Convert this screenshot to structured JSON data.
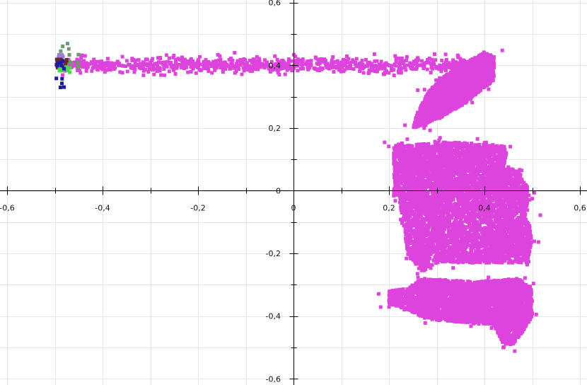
{
  "chart_data": {
    "type": "scatter",
    "title": "",
    "xlabel": "",
    "ylabel": "",
    "xlim": [
      -0.615,
      0.615
    ],
    "ylim": [
      -0.61,
      0.61
    ],
    "grid": true,
    "x_ticks": [
      -0.6,
      -0.4,
      -0.2,
      0,
      0.2,
      0.4,
      0.6
    ],
    "x_tick_labels": [
      "-0,6",
      "-0,4",
      "-0,2",
      "0",
      "0,2",
      "0,4",
      "0,6"
    ],
    "y_ticks": [
      0.6,
      0.4,
      0.2,
      0,
      -0.2,
      -0.4,
      -0.6
    ],
    "y_tick_labels": [
      "0,6",
      "0,4",
      "0,2",
      "0",
      "-0,2",
      "-0,4",
      "-0,6"
    ],
    "series": [
      {
        "color": "#dd44dd",
        "regions": [
          {
            "shape": "band",
            "x": [
              -0.49,
              0.42
            ],
            "y_center": 0.4,
            "y_spread": 0.012,
            "count": 950
          },
          {
            "shape": "polygon",
            "count": 3000,
            "points": [
              [
                0.25,
                0.2
              ],
              [
                0.27,
                0.21
              ],
              [
                0.31,
                0.235
              ],
              [
                0.36,
                0.28
              ],
              [
                0.4,
                0.33
              ],
              [
                0.42,
                0.35
              ],
              [
                0.42,
                0.43
              ],
              [
                0.4,
                0.44
              ],
              [
                0.35,
                0.4
              ],
              [
                0.31,
                0.36
              ],
              [
                0.28,
                0.31
              ],
              [
                0.26,
                0.25
              ]
            ]
          },
          {
            "shape": "polygon",
            "count": 2500,
            "points": [
              [
                0.21,
                0.15
              ],
              [
                0.24,
                0.145
              ],
              [
                0.32,
                0.155
              ],
              [
                0.4,
                0.15
              ],
              [
                0.45,
                0.14
              ],
              [
                0.44,
                0.07
              ],
              [
                0.47,
                0.07
              ],
              [
                0.49,
                0.01
              ],
              [
                0.49,
                -0.02
              ],
              [
                0.21,
                -0.02
              ]
            ]
          },
          {
            "shape": "polygon",
            "count": 2800,
            "points": [
              [
                0.22,
                -0.02
              ],
              [
                0.49,
                -0.02
              ],
              [
                0.49,
                -0.07
              ],
              [
                0.5,
                -0.16
              ],
              [
                0.49,
                -0.23
              ],
              [
                0.3,
                -0.23
              ],
              [
                0.27,
                -0.26
              ],
              [
                0.24,
                -0.21
              ],
              [
                0.23,
                -0.1
              ]
            ]
          },
          {
            "shape": "polygon",
            "count": 3300,
            "points": [
              [
                0.24,
                -0.31
              ],
              [
                0.27,
                -0.28
              ],
              [
                0.38,
                -0.29
              ],
              [
                0.47,
                -0.28
              ],
              [
                0.5,
                -0.31
              ],
              [
                0.5,
                -0.4
              ],
              [
                0.48,
                -0.45
              ],
              [
                0.46,
                -0.49
              ],
              [
                0.44,
                -0.49
              ],
              [
                0.42,
                -0.43
              ],
              [
                0.36,
                -0.42
              ],
              [
                0.28,
                -0.41
              ],
              [
                0.24,
                -0.38
              ],
              [
                0.2,
                -0.36
              ],
              [
                0.2,
                -0.32
              ]
            ]
          }
        ]
      },
      {
        "color": "#6b9a6b",
        "regions": [
          {
            "shape": "cluster",
            "x": [
              -0.495,
              -0.43
            ],
            "y": [
              0.39,
              0.47
            ],
            "count": 14
          }
        ]
      },
      {
        "color": "#9b7fd4",
        "regions": [
          {
            "shape": "cluster",
            "x": [
              -0.497,
              -0.48
            ],
            "y": [
              0.405,
              0.44
            ],
            "count": 10
          }
        ]
      },
      {
        "color": "#6b2a2a",
        "regions": [
          {
            "shape": "cluster",
            "x": [
              -0.497,
              -0.475
            ],
            "y": [
              0.39,
              0.42
            ],
            "count": 14
          }
        ]
      },
      {
        "color": "#44dd44",
        "regions": [
          {
            "shape": "cluster",
            "x": [
              -0.497,
              -0.465
            ],
            "y": [
              0.375,
              0.395
            ],
            "count": 10
          }
        ]
      },
      {
        "color": "#1a1aa8",
        "regions": [
          {
            "shape": "cluster",
            "x": [
              -0.497,
              -0.48
            ],
            "y": [
              0.32,
              0.415
            ],
            "count": 11
          }
        ]
      }
    ]
  }
}
